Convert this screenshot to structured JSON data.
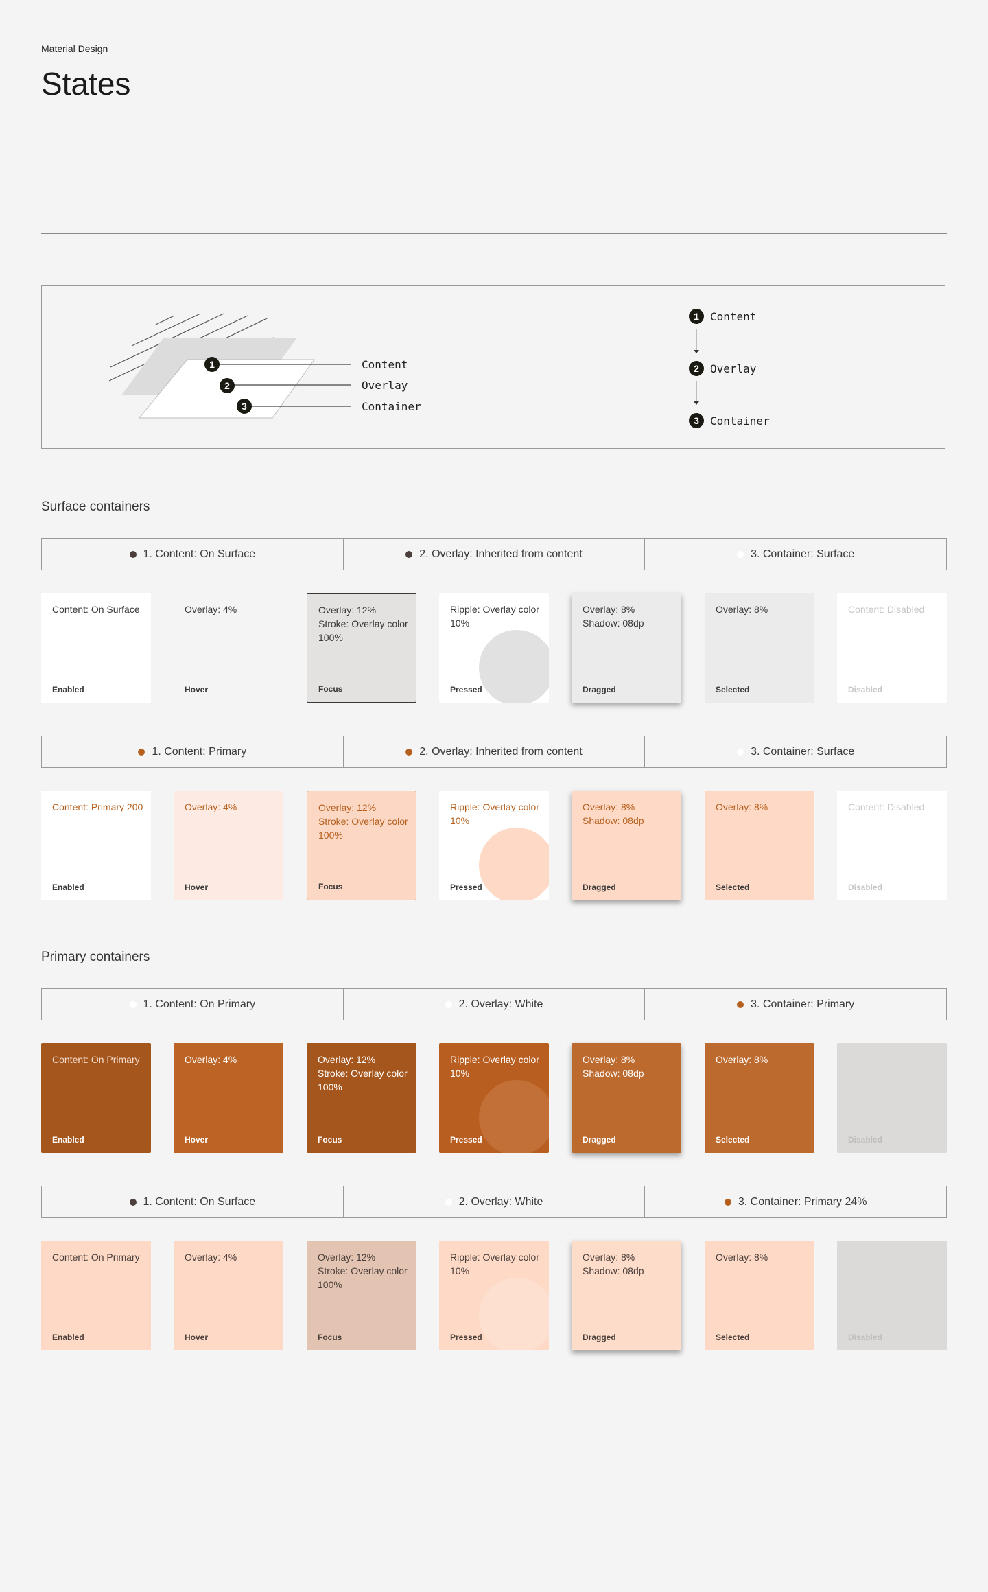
{
  "header": {
    "eyebrow": "Material Design",
    "title": "States"
  },
  "diagram": {
    "left_labels": [
      "Content",
      "Overlay",
      "Container"
    ],
    "right_labels": [
      "Content",
      "Overlay",
      "Container"
    ],
    "numbers": [
      "1",
      "2",
      "3"
    ]
  },
  "sections": {
    "surface": "Surface containers",
    "primary": "Primary containers"
  },
  "legends": [
    {
      "items": [
        {
          "label": "1. Content: On Surface",
          "dot": "#4a3f3a"
        },
        {
          "label": "2. Overlay: Inherited from content",
          "dot": "#4a3f3a"
        },
        {
          "label": "3. Container: Surface",
          "dot": "#ffffff"
        }
      ]
    },
    {
      "items": [
        {
          "label": "1. Content: Primary",
          "dot": "#b5601f"
        },
        {
          "label": "2. Overlay: Inherited from content",
          "dot": "#b5601f"
        },
        {
          "label": "3. Container: Surface",
          "dot": "#ffffff"
        }
      ]
    },
    {
      "items": [
        {
          "label": "1. Content: On Primary",
          "dot": "#ffffff"
        },
        {
          "label": "2. Overlay: White",
          "dot": "#ffffff"
        },
        {
          "label": "3. Container: Primary",
          "dot": "#b5601f"
        }
      ]
    },
    {
      "items": [
        {
          "label": "1. Content: On Surface",
          "dot": "#4a3f3a"
        },
        {
          "label": "2. Overlay: White",
          "dot": "#ffffff"
        },
        {
          "label": "3. Container: Primary 24%",
          "dot": "#b5601f"
        }
      ]
    }
  ],
  "rows": [
    {
      "cards": [
        {
          "desc": "Content: On Surface",
          "state": "Enabled",
          "bg": "#ffffff",
          "fg": "#3a3a3a"
        },
        {
          "desc": "Overlay: 4%",
          "state": "Hover",
          "bg": "#f4f4f4",
          "fg": "#3a3a3a"
        },
        {
          "desc": "Overlay: 12%\nStroke: Overlay color 100%",
          "state": "Focus",
          "bg": "#e3e2e0",
          "fg": "#3a3a3a",
          "border": "#3a3a3a"
        },
        {
          "desc": "Ripple: Overlay color 10%",
          "state": "Pressed",
          "bg": "#ffffff",
          "fg": "#3a3a3a",
          "ripple": "#e1e1e1"
        },
        {
          "desc": "Overlay: 8%\nShadow: 08dp",
          "state": "Dragged",
          "bg": "#ebebeb",
          "fg": "#3a3a3a",
          "shadow": true
        },
        {
          "desc": "Overlay: 8%",
          "state": "Selected",
          "bg": "#ebebeb",
          "fg": "#3a3a3a"
        },
        {
          "desc": "Content: Disabled",
          "state": "Disabled",
          "bg": "#ffffff",
          "fg": "#c8c8c8"
        }
      ]
    },
    {
      "cards": [
        {
          "desc": "Content: Primary 200",
          "state": "Enabled",
          "bg": "#ffffff",
          "fg": "#b5601f",
          "statefg": "#3a3a3a"
        },
        {
          "desc": "Overlay: 4%",
          "state": "Hover",
          "bg": "#fdebe3",
          "fg": "#b5601f",
          "statefg": "#3a3a3a"
        },
        {
          "desc": "Overlay: 12%\nStroke: Overlay color 100%",
          "state": "Focus",
          "bg": "#fcd7c3",
          "fg": "#b5601f",
          "statefg": "#3a3a3a",
          "border": "#b5601f"
        },
        {
          "desc": "Ripple: Overlay color 10%",
          "state": "Pressed",
          "bg": "#ffffff",
          "fg": "#b5601f",
          "statefg": "#3a3a3a",
          "ripple": "#fdd9c6"
        },
        {
          "desc": "Overlay: 8%\nShadow: 08dp",
          "state": "Dragged",
          "bg": "#fdd9c6",
          "fg": "#b5601f",
          "statefg": "#3a3a3a",
          "shadow": true
        },
        {
          "desc": "Overlay: 8%",
          "state": "Selected",
          "bg": "#fdd9c6",
          "fg": "#b5601f",
          "statefg": "#3a3a3a"
        },
        {
          "desc": "Content: Disabled",
          "state": "Disabled",
          "bg": "#ffffff",
          "fg": "#c8c8c8"
        }
      ]
    },
    {
      "cards": [
        {
          "desc": "Content: On Primary",
          "state": "Enabled",
          "bg": "#a5561d",
          "fg": "#f3dccd",
          "statefg": "#ffffff"
        },
        {
          "desc": "Overlay: 4%",
          "state": "Hover",
          "bg": "#bb6426",
          "fg": "#ffffff"
        },
        {
          "desc": "Overlay: 12%\nStroke: Overlay color 100%",
          "state": "Focus",
          "bg": "#a5561d",
          "fg": "#ffffff"
        },
        {
          "desc": "Ripple: Overlay color 10%",
          "state": "Pressed",
          "bg": "#b85e20",
          "fg": "#ffffff",
          "ripple": "#c27038"
        },
        {
          "desc": "Overlay: 8%\nShadow: 08dp",
          "state": "Dragged",
          "bg": "#bd6a2f",
          "fg": "#ffffff",
          "shadow": true
        },
        {
          "desc": "Overlay: 8%",
          "state": "Selected",
          "bg": "#bd6a2f",
          "fg": "#ffffff"
        },
        {
          "desc": "",
          "state": "Disabled",
          "bg": "#dcdad8",
          "fg": "#c0bebc"
        }
      ]
    },
    {
      "cards": [
        {
          "desc": "Content: On Primary",
          "state": "Enabled",
          "bg": "#fdd9c6",
          "fg": "#4a3f3a"
        },
        {
          "desc": "Overlay: 4%",
          "state": "Hover",
          "bg": "#fdd9c6",
          "fg": "#4a3f3a"
        },
        {
          "desc": "Overlay: 12%\nStroke: Overlay color 100%",
          "state": "Focus",
          "bg": "#e3c3b2",
          "fg": "#4a3f3a"
        },
        {
          "desc": "Ripple: Overlay color 10%",
          "state": "Pressed",
          "bg": "#fdd9c6",
          "fg": "#4a3f3a",
          "ripple": "#fde0cf"
        },
        {
          "desc": "Overlay: 8%\nShadow: 08dp",
          "state": "Dragged",
          "bg": "#fedcca",
          "fg": "#4a3f3a",
          "shadow": true
        },
        {
          "desc": "Overlay: 8%",
          "state": "Selected",
          "bg": "#fdd9c6",
          "fg": "#4a3f3a"
        },
        {
          "desc": "",
          "state": "Disabled",
          "bg": "#dcdad8",
          "fg": "#c0bebc"
        }
      ]
    }
  ]
}
